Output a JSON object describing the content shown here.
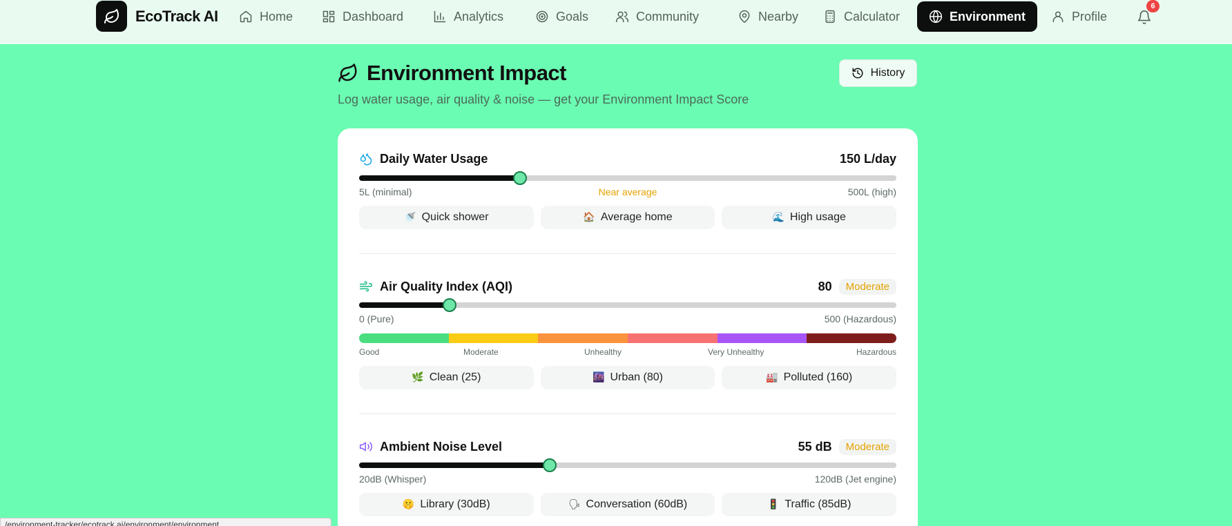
{
  "app": {
    "brand": "EcoTrack AI",
    "notifications": "6"
  },
  "nav": {
    "home": "Home",
    "dashboard": "Dashboard",
    "analytics": "Analytics",
    "goals": "Goals",
    "community": "Community",
    "nearby": "Nearby",
    "calculator": "Calculator",
    "environment": "Environment",
    "profile": "Profile"
  },
  "header": {
    "title": "Environment Impact",
    "subtitle": "Log water usage, air quality & noise — get your Environment Impact Score",
    "history_label": "History"
  },
  "water": {
    "title": "Daily Water Usage",
    "value": "150 L/day",
    "fraction": 0.3,
    "min_label": "5L (minimal)",
    "status": "Near average",
    "max_label": "500L (high)",
    "presets": [
      {
        "emoji": "🚿",
        "label": "Quick shower"
      },
      {
        "emoji": "🏠",
        "label": "Average home"
      },
      {
        "emoji": "🌊",
        "label": "High usage"
      }
    ]
  },
  "air": {
    "title": "Air Quality Index (AQI)",
    "value": "80",
    "badge": "Moderate",
    "fraction": 0.168,
    "min_label": "0 (Pure)",
    "max_label": "500 (Hazardous)",
    "scale": [
      {
        "label": "Good",
        "color": "#4ade80"
      },
      {
        "label": "Moderate",
        "color": "#facc15"
      },
      {
        "label": "Unhealthy",
        "color": "#fb923c"
      },
      {
        "label": "",
        "color": "#f87171"
      },
      {
        "label": "Very Unhealthy",
        "color": "#a855f7"
      },
      {
        "label": "Hazardous",
        "color": "#7f1d1d"
      }
    ],
    "presets": [
      {
        "emoji": "🌿",
        "label": "Clean (25)"
      },
      {
        "emoji": "🌆",
        "label": "Urban (80)"
      },
      {
        "emoji": "🏭",
        "label": "Polluted (160)"
      }
    ]
  },
  "noise": {
    "title": "Ambient Noise Level",
    "value": "55 dB",
    "badge": "Moderate",
    "fraction": 0.355,
    "min_label": "20dB (Whisper)",
    "max_label": "120dB (Jet engine)",
    "presets": [
      {
        "emoji": "🤫",
        "label": "Library (30dB)"
      },
      {
        "emoji": "🗣",
        "label": "Conversation (60dB)"
      },
      {
        "emoji": "🚦",
        "label": "Traffic (85dB)"
      }
    ]
  },
  "status_url": "/environment-tracker/ecotrack.ai/environment/environment"
}
